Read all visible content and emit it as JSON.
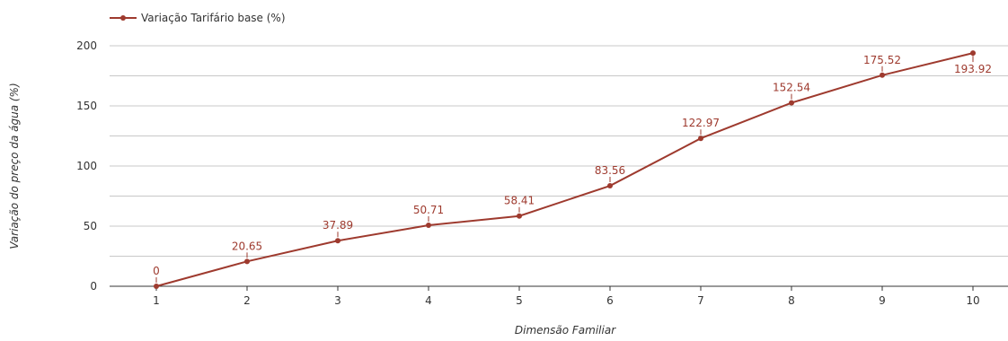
{
  "colors": {
    "series": "#9e3a2e",
    "grid": "#c8c8c8",
    "axis_line": "#333333",
    "tick_text": "#333333"
  },
  "chart_data": {
    "type": "line",
    "title": "",
    "xlabel": "Dimensão Familiar",
    "ylabel": "Variação do preço da água (%)",
    "categories": [
      "1",
      "2",
      "3",
      "4",
      "5",
      "6",
      "7",
      "8",
      "9",
      "10"
    ],
    "series": [
      {
        "name": "Variação Tarifário base (%)",
        "values": [
          0,
          20.65,
          37.89,
          50.71,
          58.41,
          83.56,
          122.97,
          152.54,
          175.52,
          193.92
        ],
        "labels": [
          "0",
          "20.65",
          "37.89",
          "50.71",
          "58.41",
          "83.56",
          "122.97",
          "152.54",
          "175.52",
          "193.92"
        ]
      }
    ],
    "ylim": [
      0,
      200
    ],
    "yticks": [
      0,
      50,
      100,
      150,
      200
    ],
    "ytick_labels": [
      "0",
      "50",
      "100",
      "150",
      "200"
    ],
    "grid": true,
    "legend_position": "top-left",
    "marker": "circle"
  }
}
